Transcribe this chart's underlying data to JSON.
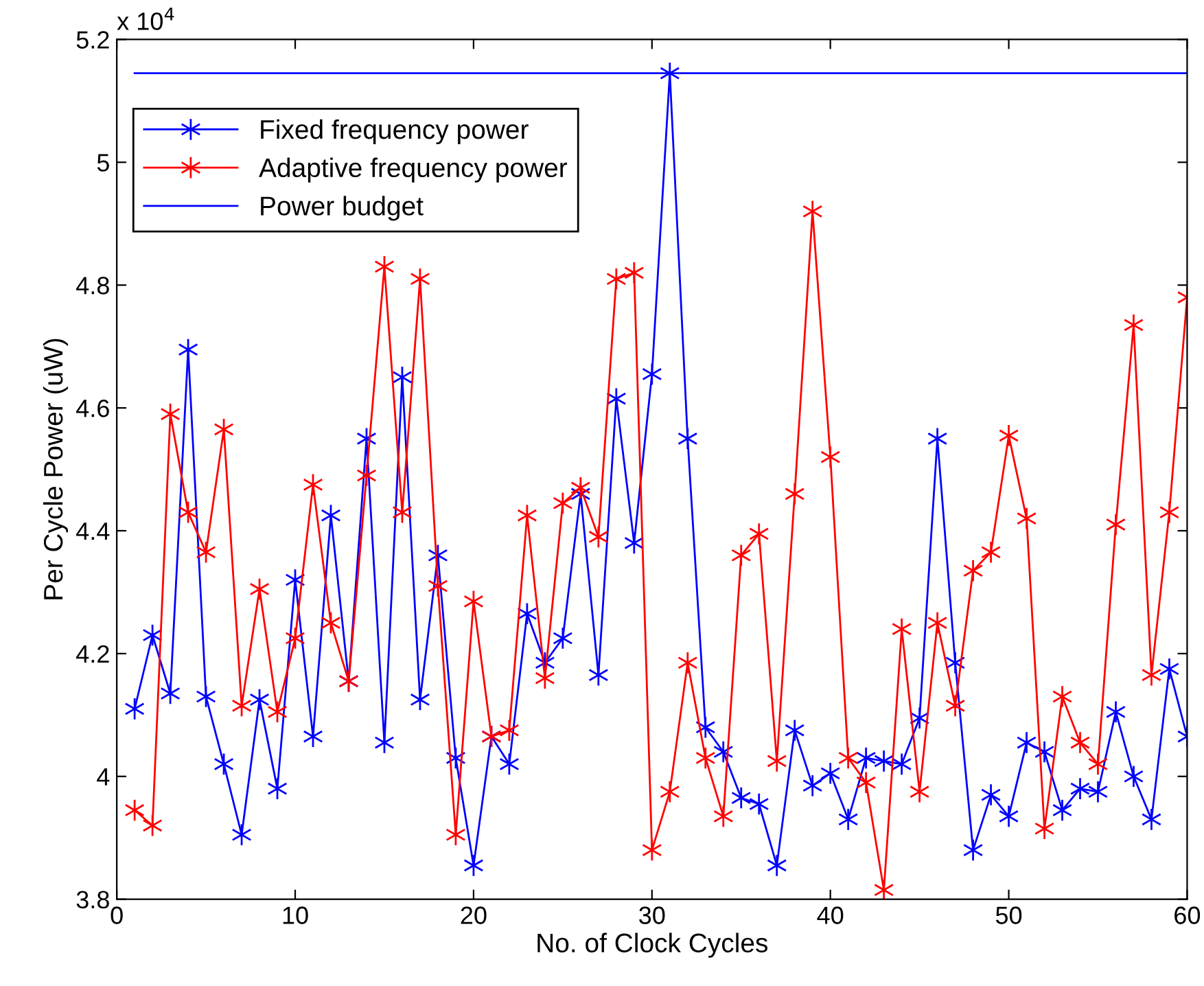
{
  "chart_data": {
    "type": "line",
    "xlabel": "No. of Clock Cycles",
    "ylabel": "Per Cycle Power (uW)",
    "annotations": [
      "x 10$^{4}$"
    ],
    "x": [
      1,
      2,
      3,
      4,
      5,
      6,
      7,
      8,
      9,
      10,
      11,
      12,
      13,
      14,
      15,
      16,
      17,
      18,
      19,
      20,
      21,
      22,
      23,
      24,
      25,
      26,
      27,
      28,
      29,
      30,
      31,
      32,
      33,
      34,
      35,
      36,
      37,
      38,
      39,
      40,
      41,
      42,
      43,
      44,
      45,
      46,
      47,
      48,
      49,
      50,
      51,
      52,
      53,
      54,
      55,
      56,
      57,
      58,
      59,
      60
    ],
    "series": [
      {
        "name": "Fixed frequency power",
        "color": "#0000ff",
        "marker": "cross",
        "values": [
          4.11,
          4.23,
          4.135,
          4.695,
          4.13,
          4.02,
          3.905,
          4.125,
          3.98,
          4.32,
          4.065,
          4.425,
          4.155,
          4.55,
          4.055,
          4.65,
          4.125,
          4.36,
          4.03,
          3.855,
          4.065,
          4.02,
          4.265,
          4.185,
          4.225,
          4.46,
          4.165,
          4.615,
          4.38,
          4.655,
          5.145,
          4.55,
          4.08,
          4.04,
          3.965,
          3.955,
          3.855,
          4.075,
          3.985,
          4.005,
          3.93,
          4.03,
          4.025,
          4.02,
          4.095,
          4.55,
          4.185,
          3.88,
          3.97,
          3.935,
          4.055,
          4.04,
          3.945,
          3.98,
          3.975,
          4.105,
          4.0,
          3.93,
          4.175,
          4.065
        ]
      },
      {
        "name": "Adaptive frequency power",
        "color": "#ff0000",
        "marker": "cross",
        "values": [
          3.945,
          3.92,
          4.59,
          4.43,
          4.365,
          4.565,
          4.115,
          4.305,
          4.105,
          4.225,
          4.475,
          4.25,
          4.155,
          4.49,
          4.83,
          4.43,
          4.81,
          4.31,
          3.905,
          4.285,
          4.065,
          4.075,
          4.425,
          4.16,
          4.445,
          4.47,
          4.39,
          4.81,
          4.82,
          3.88,
          3.975,
          4.185,
          4.03,
          3.935,
          4.36,
          4.395,
          4.025,
          4.46,
          4.92,
          4.52,
          4.03,
          3.99,
          3.815,
          4.24,
          3.975,
          4.25,
          4.115,
          4.335,
          4.365,
          4.555,
          4.42,
          3.915,
          4.13,
          4.055,
          4.02,
          4.41,
          4.735,
          4.165,
          4.43,
          4.78
        ]
      },
      {
        "name": "Power budget",
        "color": "#0000ff",
        "marker": "none",
        "x": [
          1,
          60
        ],
        "values": [
          5.145,
          5.145
        ]
      }
    ],
    "xlim": [
      0,
      60
    ],
    "xticks": [
      0,
      10,
      20,
      30,
      40,
      50,
      60
    ],
    "ylim": [
      3.8,
      5.2
    ],
    "yticks": [
      3.8,
      4,
      4.2,
      4.4,
      4.6,
      4.8,
      5,
      5.2
    ],
    "grid": false,
    "legend": "top left"
  }
}
